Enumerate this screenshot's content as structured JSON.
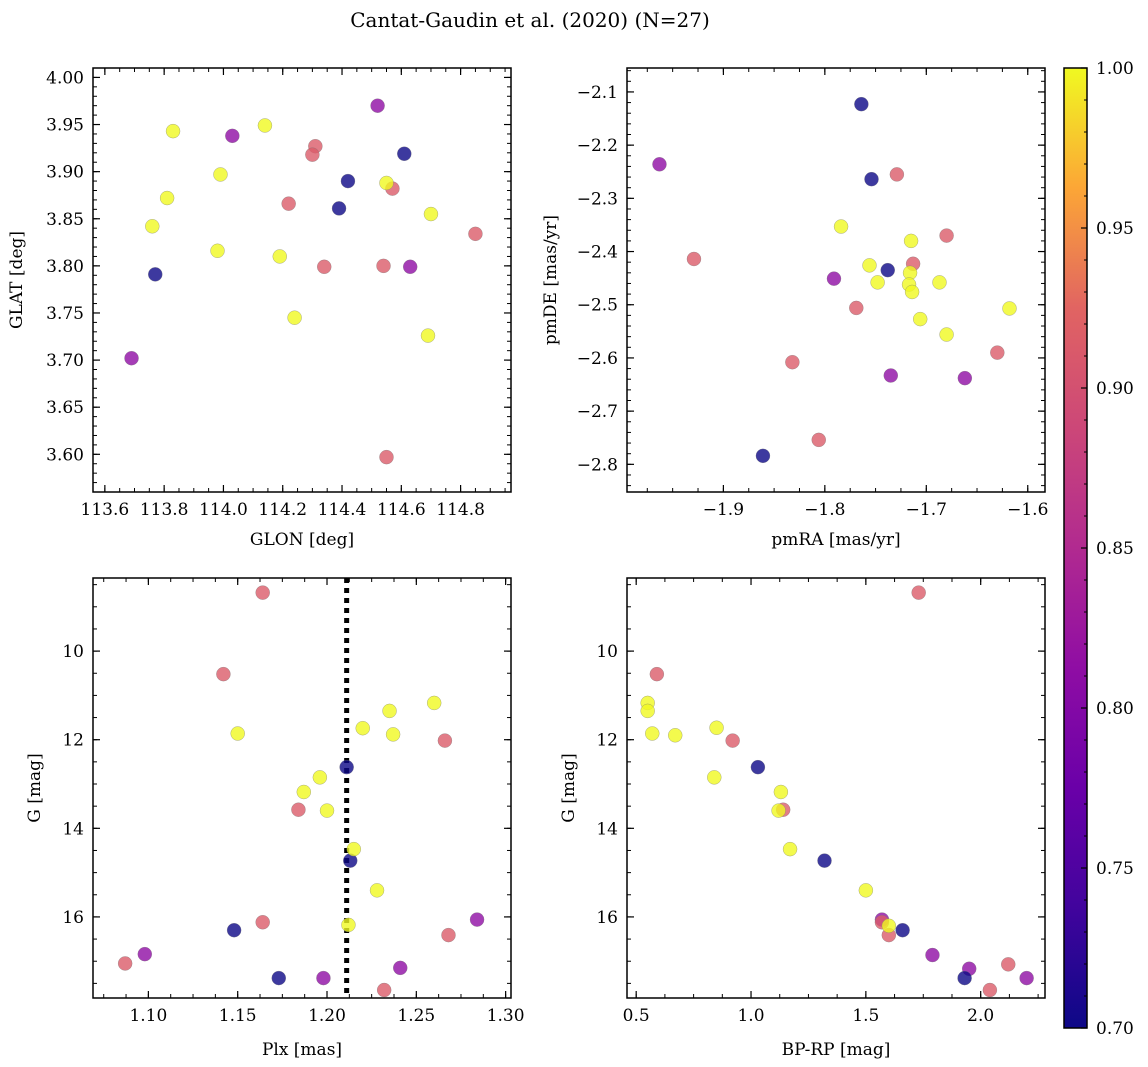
{
  "figure_title": "Cantat-Gaudin et al. (2020) (N=27)",
  "colorbar": {
    "cmap": "plasma",
    "range": [
      0.7,
      1.0
    ],
    "ticks": [
      "0.70",
      "0.75",
      "0.80",
      "0.85",
      "0.90",
      "0.95",
      "1.00"
    ]
  },
  "chart_data": [
    {
      "type": "scatter",
      "id": "radec",
      "xlabel": "GLON [deg]",
      "ylabel": "GLAT [deg]",
      "xlim": [
        113.56,
        114.97
      ],
      "ylim": [
        3.56,
        4.01
      ],
      "xticks": [
        "113.6",
        "113.8",
        "114.0",
        "114.2",
        "114.4",
        "114.6",
        "114.8"
      ],
      "yticks": [
        "3.60",
        "3.65",
        "3.70",
        "3.75",
        "3.80",
        "3.85",
        "3.90",
        "3.95",
        "4.00"
      ],
      "points": [
        [
          114.52,
          3.97,
          0.8
        ],
        [
          114.03,
          3.938,
          0.8
        ],
        [
          113.69,
          3.702,
          0.8
        ],
        [
          114.63,
          3.799,
          0.8
        ],
        [
          114.42,
          3.89,
          0.7
        ],
        [
          114.61,
          3.919,
          0.7
        ],
        [
          114.39,
          3.861,
          0.7
        ],
        [
          113.77,
          3.791,
          0.7
        ],
        [
          114.31,
          3.927,
          0.89
        ],
        [
          114.3,
          3.918,
          0.89
        ],
        [
          114.22,
          3.866,
          0.89
        ],
        [
          114.34,
          3.799,
          0.89
        ],
        [
          114.54,
          3.8,
          0.89
        ],
        [
          114.57,
          3.882,
          0.89
        ],
        [
          114.85,
          3.834,
          0.89
        ],
        [
          114.55,
          3.597,
          0.89
        ],
        [
          113.83,
          3.943,
          1.0
        ],
        [
          113.81,
          3.872,
          1.0
        ],
        [
          113.76,
          3.842,
          1.0
        ],
        [
          113.99,
          3.897,
          1.0
        ],
        [
          114.14,
          3.949,
          1.0
        ],
        [
          113.98,
          3.816,
          1.0
        ],
        [
          114.19,
          3.81,
          1.0
        ],
        [
          114.24,
          3.745,
          1.0
        ],
        [
          114.55,
          3.888,
          1.0
        ],
        [
          114.7,
          3.855,
          1.0
        ],
        [
          114.69,
          3.726,
          1.0
        ]
      ]
    },
    {
      "type": "scatter",
      "id": "pm",
      "xlabel": "pmRA [mas/yr]",
      "ylabel": "pmDE [mas/yr]",
      "xlim": [
        -1.995,
        -1.583
      ],
      "ylim": [
        -2.852,
        -2.055
      ],
      "xticks": [
        "−1.9",
        "−1.8",
        "−1.7",
        "−1.6"
      ],
      "yticks": [
        "−2.1",
        "−2.2",
        "−2.3",
        "−2.4",
        "−2.5",
        "−2.6",
        "−2.7",
        "−2.8"
      ],
      "points": [
        [
          -1.963,
          -2.236,
          0.8
        ],
        [
          -1.791,
          -2.451,
          0.8
        ],
        [
          -1.735,
          -2.633,
          0.8
        ],
        [
          -1.662,
          -2.638,
          0.8
        ],
        [
          -1.764,
          -2.123,
          0.7
        ],
        [
          -1.754,
          -2.264,
          0.7
        ],
        [
          -1.738,
          -2.435,
          0.7
        ],
        [
          -1.861,
          -2.784,
          0.7
        ],
        [
          -1.929,
          -2.414,
          0.89
        ],
        [
          -1.729,
          -2.255,
          0.89
        ],
        [
          -1.713,
          -2.423,
          0.89
        ],
        [
          -1.68,
          -2.37,
          0.89
        ],
        [
          -1.769,
          -2.506,
          0.89
        ],
        [
          -1.832,
          -2.608,
          0.89
        ],
        [
          -1.63,
          -2.59,
          0.89
        ],
        [
          -1.806,
          -2.754,
          0.89
        ],
        [
          -1.784,
          -2.353,
          1.0
        ],
        [
          -1.756,
          -2.426,
          1.0
        ],
        [
          -1.748,
          -2.458,
          1.0
        ],
        [
          -1.715,
          -2.38,
          1.0
        ],
        [
          -1.716,
          -2.44,
          1.0
        ],
        [
          -1.717,
          -2.462,
          1.0
        ],
        [
          -1.714,
          -2.476,
          1.0
        ],
        [
          -1.706,
          -2.527,
          1.0
        ],
        [
          -1.687,
          -2.458,
          1.0
        ],
        [
          -1.68,
          -2.556,
          1.0
        ],
        [
          -1.618,
          -2.507,
          1.0
        ]
      ]
    },
    {
      "type": "scatter",
      "id": "plx",
      "xlabel": "Plx [mas]",
      "ylabel": "G [mag]",
      "xlim": [
        1.069,
        1.303
      ],
      "ylim": [
        17.83,
        8.35
      ],
      "xticks": [
        "1.10",
        "1.15",
        "1.20",
        "1.25",
        "1.30"
      ],
      "yticks": [
        "10",
        "12",
        "14",
        "16"
      ],
      "vline": 1.211,
      "points": [
        [
          1.098,
          16.84,
          0.8
        ],
        [
          1.198,
          17.38,
          0.8
        ],
        [
          1.241,
          17.15,
          0.8
        ],
        [
          1.284,
          16.06,
          0.8
        ],
        [
          1.211,
          12.62,
          0.7
        ],
        [
          1.213,
          14.73,
          0.7
        ],
        [
          1.148,
          16.3,
          0.7
        ],
        [
          1.173,
          17.38,
          0.7
        ],
        [
          1.164,
          8.68,
          0.89
        ],
        [
          1.142,
          10.52,
          0.89
        ],
        [
          1.266,
          12.02,
          0.89
        ],
        [
          1.184,
          13.58,
          0.89
        ],
        [
          1.164,
          16.12,
          0.89
        ],
        [
          1.268,
          16.41,
          0.89
        ],
        [
          1.087,
          17.05,
          0.89
        ],
        [
          1.232,
          17.65,
          0.89
        ],
        [
          1.26,
          11.17,
          1.0
        ],
        [
          1.235,
          11.35,
          1.0
        ],
        [
          1.22,
          11.74,
          1.0
        ],
        [
          1.237,
          11.88,
          1.0
        ],
        [
          1.15,
          11.86,
          1.0
        ],
        [
          1.196,
          12.85,
          1.0
        ],
        [
          1.187,
          13.18,
          1.0
        ],
        [
          1.2,
          13.6,
          1.0
        ],
        [
          1.215,
          14.47,
          1.0
        ],
        [
          1.228,
          15.4,
          1.0
        ],
        [
          1.212,
          16.18,
          1.0
        ]
      ]
    },
    {
      "type": "scatter",
      "id": "cmd",
      "xlabel": "BP-RP [mag]",
      "ylabel": "G [mag]",
      "xlim": [
        0.46,
        2.28
      ],
      "ylim": [
        17.83,
        8.35
      ],
      "xticks": [
        "0.5",
        "1.0",
        "1.5",
        "2.0"
      ],
      "yticks": [
        "10",
        "12",
        "14",
        "16"
      ],
      "points": [
        [
          1.57,
          16.06,
          0.8
        ],
        [
          1.79,
          16.86,
          0.8
        ],
        [
          1.95,
          17.17,
          0.8
        ],
        [
          2.2,
          17.38,
          0.8
        ],
        [
          1.03,
          12.62,
          0.7
        ],
        [
          1.32,
          14.73,
          0.7
        ],
        [
          1.66,
          16.3,
          0.7
        ],
        [
          1.93,
          17.38,
          0.7
        ],
        [
          1.73,
          8.68,
          0.89
        ],
        [
          0.59,
          10.52,
          0.89
        ],
        [
          0.92,
          12.02,
          0.89
        ],
        [
          1.14,
          13.58,
          0.89
        ],
        [
          1.57,
          16.12,
          0.89
        ],
        [
          1.6,
          16.41,
          0.89
        ],
        [
          2.12,
          17.07,
          0.89
        ],
        [
          2.04,
          17.65,
          0.89
        ],
        [
          0.55,
          11.17,
          1.0
        ],
        [
          0.55,
          11.35,
          1.0
        ],
        [
          0.57,
          11.86,
          1.0
        ],
        [
          0.67,
          11.9,
          1.0
        ],
        [
          0.85,
          11.73,
          1.0
        ],
        [
          0.84,
          12.85,
          1.0
        ],
        [
          1.13,
          13.18,
          1.0
        ],
        [
          1.12,
          13.6,
          1.0
        ],
        [
          1.17,
          14.47,
          1.0
        ],
        [
          1.5,
          15.4,
          1.0
        ],
        [
          1.6,
          16.2,
          1.0
        ]
      ]
    }
  ]
}
